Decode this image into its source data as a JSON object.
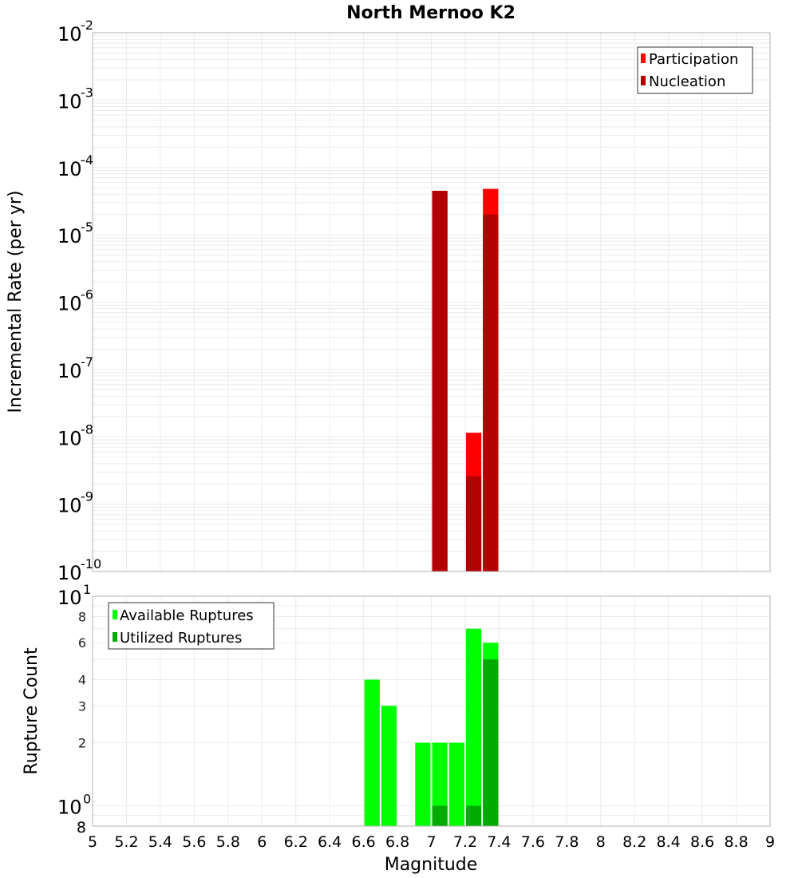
{
  "title": "North Mernoo K2",
  "colors": {
    "participation": "#FF0000",
    "nucleation": "#B30000",
    "available": "#00FF00",
    "utilized": "#00AA00",
    "grid": "#EBEBEB",
    "frame": "#B0B0B0"
  },
  "chart_data": [
    {
      "type": "bar",
      "title": "North Mernoo K2",
      "xlabel": "Magnitude",
      "ylabel": "Incremental Rate (per yr)",
      "yscale": "log",
      "ylim": [
        1e-10,
        0.01
      ],
      "xlim": [
        5,
        9
      ],
      "grid": true,
      "legend_position": "top-right",
      "y_tick_labels": [
        "10^-2",
        "10^-3",
        "10^-4",
        "10^-5",
        "10^-6",
        "10^-7",
        "10^-8",
        "10^-9",
        "10^-10"
      ],
      "x": [
        7.05,
        7.25,
        7.35
      ],
      "bar_width": 0.1,
      "series": [
        {
          "name": "Participation",
          "color": "#FF0000",
          "values": [
            4.5e-05,
            1.15e-08,
            4.8e-05
          ]
        },
        {
          "name": "Nucleation",
          "color": "#B30000",
          "values": [
            4.5e-05,
            2.6e-09,
            2e-05
          ]
        }
      ]
    },
    {
      "type": "bar",
      "xlabel": "Magnitude",
      "ylabel": "Rupture Count",
      "yscale": "log",
      "ylim": [
        0.8,
        10
      ],
      "xlim": [
        5,
        9
      ],
      "grid": true,
      "legend_position": "top-left",
      "y_tick_labels": [
        "10^1",
        "8",
        "6",
        "4",
        "3",
        "2",
        "10^0",
        "8"
      ],
      "x_tick_labels": [
        "5",
        "5.2",
        "5.4",
        "5.6",
        "5.8",
        "6",
        "6.2",
        "6.4",
        "6.6",
        "6.8",
        "7",
        "7.2",
        "7.4",
        "7.6",
        "7.8",
        "8",
        "8.2",
        "8.4",
        "8.6",
        "8.8",
        "9"
      ],
      "x": [
        6.65,
        6.75,
        6.95,
        7.05,
        7.15,
        7.25,
        7.35
      ],
      "bar_width": 0.1,
      "series": [
        {
          "name": "Available Ruptures",
          "color": "#00FF00",
          "values": [
            4,
            3,
            2,
            2,
            2,
            7,
            6
          ]
        },
        {
          "name": "Utilized Ruptures",
          "color": "#00AA00",
          "values": [
            0,
            0,
            0,
            1,
            0,
            1,
            5
          ]
        }
      ]
    }
  ],
  "top_plot": {
    "ylabel": "Incremental Rate (per yr)",
    "legend": [
      "Participation",
      "Nucleation"
    ],
    "y_ticks": [
      {
        "base": "10",
        "exp": "-2"
      },
      {
        "base": "10",
        "exp": "-3"
      },
      {
        "base": "10",
        "exp": "-4"
      },
      {
        "base": "10",
        "exp": "-5"
      },
      {
        "base": "10",
        "exp": "-6"
      },
      {
        "base": "10",
        "exp": "-7"
      },
      {
        "base": "10",
        "exp": "-8"
      },
      {
        "base": "10",
        "exp": "-9"
      },
      {
        "base": "10",
        "exp": "-10"
      }
    ]
  },
  "bottom_plot": {
    "ylabel": "Rupture Count",
    "xlabel": "Magnitude",
    "legend": [
      "Available Ruptures",
      "Utilized Ruptures"
    ],
    "y_ticks_major": [
      {
        "base": "10",
        "exp": "1"
      },
      {
        "base": "10",
        "exp": "0"
      }
    ],
    "y_ticks_minor": [
      "8",
      "6",
      "4",
      "3",
      "2"
    ],
    "y_tick_bottom": "8"
  }
}
